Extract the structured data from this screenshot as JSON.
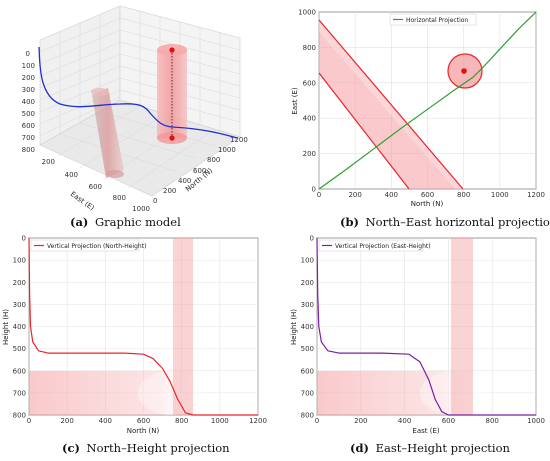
{
  "captions": {
    "a": {
      "letter": "(a)",
      "text": "Graphic model"
    },
    "b": {
      "letter": "(b)",
      "text": "North–East horizontal projection"
    },
    "c": {
      "letter": "(c)",
      "text": "North–Height projection"
    },
    "d": {
      "letter": "(d)",
      "text": "East–Height projection"
    }
  },
  "chart_data": [
    {
      "id": "a",
      "type": "line",
      "projection": "3d",
      "zlabel": "",
      "xlabel": "North (N)",
      "ylabel": "East (E)",
      "z_ticks": [
        "0",
        "100",
        "200",
        "300",
        "400",
        "500",
        "600",
        "700",
        "800"
      ],
      "north_ticks": [
        "0",
        "200",
        "400",
        "600",
        "800",
        "1000",
        "1200"
      ],
      "east_ticks": [
        "200",
        "400",
        "600",
        "800",
        "1000"
      ],
      "series": [
        {
          "color": "#1f2fd6"
        }
      ],
      "grid": true
    },
    {
      "id": "b",
      "type": "line",
      "xlabel": "North (N)",
      "ylabel": "East (E)",
      "xlim": [
        0,
        1200
      ],
      "ylim": [
        0,
        1000
      ],
      "x_ticks": [
        "0",
        "200",
        "400",
        "600",
        "800",
        "1000",
        "1200"
      ],
      "y_ticks": [
        "0",
        "200",
        "400",
        "600",
        "800",
        "1000"
      ],
      "legend_position": "top-right",
      "grid": true,
      "series": [
        {
          "name": "Horizontal Projection",
          "color": "#2ca02c",
          "x": [
            0,
            150,
            300,
            450,
            600,
            750,
            850,
            900,
            1000,
            1100,
            1200
          ],
          "y": [
            0,
            110,
            225,
            340,
            450,
            560,
            630,
            680,
            790,
            900,
            1000
          ]
        }
      ],
      "obstacles": {
        "circle": {
          "center": [
            810,
            670
          ],
          "radius": 95,
          "color": "#e8242a"
        },
        "band_band": {
          "x_start_top": 0,
          "x_end_top": 300,
          "x_start_bottom": 500,
          "x_end_bottom": 800,
          "top": 960,
          "inner_top": 650,
          "color": "#e8242a"
        }
      }
    },
    {
      "id": "c",
      "type": "line",
      "xlabel": "North (N)",
      "ylabel": "Height (H)",
      "xlim": [
        0,
        1200
      ],
      "ylim": [
        800,
        0
      ],
      "x_ticks": [
        "0",
        "200",
        "400",
        "600",
        "800",
        "1000",
        "1200"
      ],
      "y_ticks": [
        "0",
        "100",
        "200",
        "300",
        "400",
        "500",
        "600",
        "700",
        "800"
      ],
      "legend_position": "top-left",
      "grid": true,
      "series": [
        {
          "name": "Vertical Projection (North-Height)",
          "color": "#e8242a",
          "x": [
            0,
            3,
            8,
            20,
            50,
            100,
            300,
            500,
            600,
            650,
            700,
            740,
            780,
            820,
            860,
            900,
            1200
          ],
          "y": [
            0,
            250,
            400,
            470,
            510,
            520,
            520,
            520,
            525,
            545,
            590,
            650,
            730,
            790,
            800,
            800,
            800
          ]
        }
      ],
      "obstacles": {
        "column": [
          760,
          840
        ],
        "band": [
          600,
          800
        ],
        "color": "#f49da0"
      }
    },
    {
      "id": "d",
      "type": "line",
      "xlabel": "East (E)",
      "ylabel": "Height (H)",
      "xlim": [
        0,
        1000
      ],
      "ylim": [
        800,
        0
      ],
      "x_ticks": [
        "0",
        "200",
        "400",
        "600",
        "800",
        "1000"
      ],
      "y_ticks": [
        "0",
        "100",
        "200",
        "300",
        "400",
        "500",
        "600",
        "700",
        "800"
      ],
      "legend_position": "top-left",
      "grid": true,
      "series": [
        {
          "name": "Vertical Projection (East-Height)",
          "color": "#7a1fa2",
          "x": [
            0,
            3,
            8,
            20,
            50,
            100,
            300,
            420,
            470,
            510,
            540,
            570,
            600,
            650,
            700,
            1000
          ],
          "y": [
            0,
            250,
            400,
            470,
            510,
            520,
            520,
            525,
            560,
            640,
            730,
            785,
            800,
            800,
            800,
            800
          ]
        }
      ],
      "obstacles": {
        "column": [
          610,
          690
        ],
        "band": [
          600,
          800
        ],
        "color": "#f49da0"
      }
    }
  ]
}
